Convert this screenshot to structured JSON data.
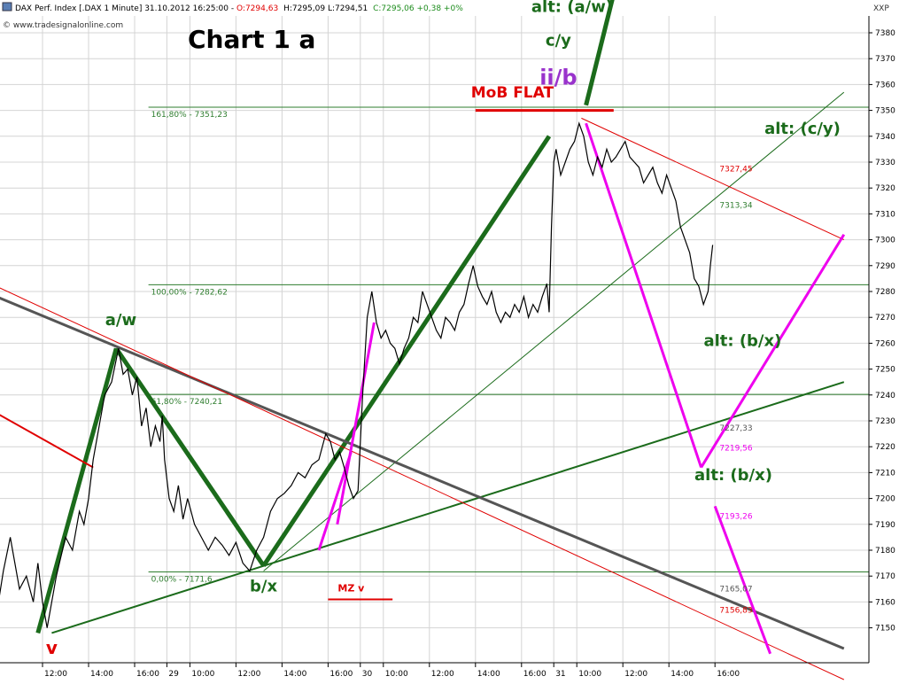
{
  "header": {
    "instrument": "DAX Perf. Index [.DAX  1 Minute] 31.10.2012 16:25:00 -",
    "open": "O:7294,63",
    "hl": "H:7295,09 L:7294,51",
    "close": "C:7295,06 +0,38 +0%",
    "source": "© www.tradesignalonline.com",
    "axis_unit": "XXP"
  },
  "colors": {
    "background": "#ffffff",
    "grid": "#d4d4d4",
    "price": "#000000",
    "wave_green": "#1b6b1b",
    "red": "#e00000",
    "magenta": "#ee00ee",
    "purple": "#9933cc",
    "gray_line": "#555555",
    "fib_green": "#2e7d2e"
  },
  "chart_data": {
    "type": "line",
    "title": "Chart 1 a",
    "ylim": [
      7137,
      7393
    ],
    "yticks": [
      7150,
      7160,
      7170,
      7180,
      7190,
      7200,
      7210,
      7220,
      7230,
      7240,
      7250,
      7260,
      7270,
      7280,
      7290,
      7300,
      7310,
      7320,
      7330,
      7340,
      7350,
      7360,
      7370,
      7380
    ],
    "xlim": [
      0,
      162
    ],
    "xticks": [
      {
        "label": "12:00",
        "t": 10
      },
      {
        "label": "14:00",
        "t": 20
      },
      {
        "label": "16:00",
        "t": 30
      },
      {
        "label": "29",
        "t": 37
      },
      {
        "label": "10:00",
        "t": 42
      },
      {
        "label": "12:00",
        "t": 52
      },
      {
        "label": "14:00",
        "t": 62
      },
      {
        "label": "16:00",
        "t": 72
      },
      {
        "label": "30",
        "t": 79
      },
      {
        "label": "10:00",
        "t": 84
      },
      {
        "label": "12:00",
        "t": 94
      },
      {
        "label": "14:00",
        "t": 104
      },
      {
        "label": "16:00",
        "t": 114
      },
      {
        "label": "31",
        "t": 121
      },
      {
        "label": "10:00",
        "t": 126
      },
      {
        "label": "12:00",
        "t": 136
      },
      {
        "label": "14:00",
        "t": 146
      },
      {
        "label": "16:00",
        "t": 156
      }
    ],
    "price_series": [
      [
        0,
        7155
      ],
      [
        1.5,
        7172
      ],
      [
        3,
        7185
      ],
      [
        4,
        7175
      ],
      [
        5,
        7165
      ],
      [
        6.5,
        7170
      ],
      [
        8,
        7160
      ],
      [
        9,
        7175
      ],
      [
        10,
        7160
      ],
      [
        11,
        7150
      ],
      [
        12,
        7160
      ],
      [
        13,
        7170
      ],
      [
        15,
        7185
      ],
      [
        16.5,
        7180
      ],
      [
        18,
        7195
      ],
      [
        19,
        7190
      ],
      [
        20,
        7200
      ],
      [
        21,
        7215
      ],
      [
        22,
        7225
      ],
      [
        23.5,
        7240
      ],
      [
        25,
        7245
      ],
      [
        26.5,
        7258
      ],
      [
        27.5,
        7248
      ],
      [
        28.5,
        7250
      ],
      [
        29.5,
        7240
      ],
      [
        30.5,
        7247
      ],
      [
        31.5,
        7228
      ],
      [
        32.5,
        7235
      ],
      [
        33.5,
        7220
      ],
      [
        34.5,
        7228
      ],
      [
        35.5,
        7222
      ],
      [
        36,
        7232
      ],
      [
        36.5,
        7215
      ],
      [
        37.5,
        7200
      ],
      [
        38.5,
        7195
      ],
      [
        39.5,
        7205
      ],
      [
        40.5,
        7192
      ],
      [
        41.5,
        7200
      ],
      [
        43,
        7190
      ],
      [
        44.5,
        7185
      ],
      [
        46,
        7180
      ],
      [
        47.5,
        7185
      ],
      [
        49,
        7182
      ],
      [
        50.5,
        7178
      ],
      [
        52,
        7183
      ],
      [
        53.5,
        7175
      ],
      [
        55,
        7172
      ],
      [
        56.5,
        7180
      ],
      [
        58,
        7185
      ],
      [
        59.5,
        7195
      ],
      [
        61,
        7200
      ],
      [
        62.5,
        7202
      ],
      [
        64,
        7205
      ],
      [
        65.5,
        7210
      ],
      [
        67,
        7208
      ],
      [
        68.5,
        7213
      ],
      [
        70,
        7215
      ],
      [
        71.5,
        7225
      ],
      [
        72.5,
        7222
      ],
      [
        73.5,
        7215
      ],
      [
        74.5,
        7218
      ],
      [
        75.5,
        7212
      ],
      [
        76.5,
        7205
      ],
      [
        77.5,
        7200
      ],
      [
        78.5,
        7203
      ],
      [
        79.5,
        7240
      ],
      [
        80,
        7255
      ],
      [
        80.5,
        7270
      ],
      [
        81.5,
        7280
      ],
      [
        82.5,
        7268
      ],
      [
        83.5,
        7262
      ],
      [
        84.5,
        7265
      ],
      [
        85.5,
        7260
      ],
      [
        86.5,
        7258
      ],
      [
        87.5,
        7252
      ],
      [
        88.5,
        7258
      ],
      [
        89.5,
        7262
      ],
      [
        90.5,
        7270
      ],
      [
        91.5,
        7268
      ],
      [
        92.5,
        7280
      ],
      [
        93.5,
        7275
      ],
      [
        94.5,
        7270
      ],
      [
        95.5,
        7265
      ],
      [
        96.5,
        7262
      ],
      [
        97.5,
        7270
      ],
      [
        98.5,
        7268
      ],
      [
        99.5,
        7265
      ],
      [
        100.5,
        7272
      ],
      [
        101.5,
        7275
      ],
      [
        102.5,
        7283
      ],
      [
        103.5,
        7290
      ],
      [
        104.5,
        7282
      ],
      [
        105.5,
        7278
      ],
      [
        106.5,
        7275
      ],
      [
        107.5,
        7280
      ],
      [
        108.5,
        7272
      ],
      [
        109.5,
        7268
      ],
      [
        110.5,
        7272
      ],
      [
        111.5,
        7270
      ],
      [
        112.5,
        7275
      ],
      [
        113.5,
        7272
      ],
      [
        114.5,
        7278
      ],
      [
        115.5,
        7270
      ],
      [
        116.5,
        7275
      ],
      [
        117.5,
        7272
      ],
      [
        118.5,
        7278
      ],
      [
        119.5,
        7283
      ],
      [
        120,
        7272
      ],
      [
        120.5,
        7305
      ],
      [
        121,
        7330
      ],
      [
        121.5,
        7335
      ],
      [
        122.5,
        7325
      ],
      [
        123.5,
        7330
      ],
      [
        124.5,
        7335
      ],
      [
        125.5,
        7338
      ],
      [
        126.5,
        7345
      ],
      [
        127.5,
        7340
      ],
      [
        128.5,
        7330
      ],
      [
        129.5,
        7325
      ],
      [
        130.5,
        7332
      ],
      [
        131.5,
        7328
      ],
      [
        132.5,
        7335
      ],
      [
        133.5,
        7330
      ],
      [
        134.5,
        7332
      ],
      [
        135.5,
        7335
      ],
      [
        136.5,
        7338
      ],
      [
        137.5,
        7332
      ],
      [
        138.5,
        7330
      ],
      [
        139.5,
        7328
      ],
      [
        140.5,
        7322
      ],
      [
        141.5,
        7325
      ],
      [
        142.5,
        7328
      ],
      [
        143.5,
        7322
      ],
      [
        144.5,
        7318
      ],
      [
        145.5,
        7325
      ],
      [
        146.5,
        7320
      ],
      [
        147.5,
        7315
      ],
      [
        148.5,
        7305
      ],
      [
        149.5,
        7300
      ],
      [
        150.5,
        7295
      ],
      [
        151.5,
        7285
      ],
      [
        152.5,
        7282
      ],
      [
        153.5,
        7275
      ],
      [
        154.5,
        7280
      ],
      [
        155,
        7290
      ],
      [
        155.5,
        7298
      ]
    ],
    "wave_lines": [
      {
        "name": "v-to-a/w",
        "color": "wave_green",
        "width": 5,
        "points": [
          [
            9,
            7148
          ],
          [
            26,
            7258
          ]
        ]
      },
      {
        "name": "a/w-to-b/x",
        "color": "wave_green",
        "width": 5,
        "points": [
          [
            26,
            7258
          ],
          [
            58,
            7174
          ]
        ]
      },
      {
        "name": "b/x-to-c",
        "color": "wave_green",
        "width": 5,
        "points": [
          [
            58,
            7174
          ],
          [
            120,
            7340
          ]
        ]
      },
      {
        "name": "ii/b-to-alt-a/w",
        "color": "wave_green",
        "width": 5,
        "points": [
          [
            128,
            7352
          ],
          [
            134,
            7395
          ]
        ]
      },
      {
        "name": "support-lower",
        "color": "wave_green",
        "width": 2,
        "points": [
          [
            12,
            7148
          ],
          [
            184,
            7245
          ]
        ]
      },
      {
        "name": "support-upper",
        "color": "wave_green",
        "width": 1,
        "points": [
          [
            58,
            7172
          ],
          [
            184,
            7357
          ]
        ]
      },
      {
        "name": "gray-trendline",
        "color": "gray_line",
        "width": 3,
        "points": [
          [
            0,
            7278
          ],
          [
            184,
            7142
          ]
        ]
      },
      {
        "name": "red-trendline-1",
        "color": "red",
        "width": 1,
        "points": [
          [
            0,
            7282
          ],
          [
            184,
            7130
          ]
        ]
      },
      {
        "name": "red-channel-top",
        "color": "red",
        "width": 1,
        "points": [
          [
            127,
            7347
          ],
          [
            184,
            7300
          ]
        ]
      },
      {
        "name": "red-short",
        "color": "red",
        "width": 2,
        "points": [
          [
            0,
            7233
          ],
          [
            21,
            7212
          ]
        ]
      },
      {
        "name": "mob-flat",
        "color": "red",
        "width": 3,
        "points": [
          [
            104,
            7350
          ],
          [
            134,
            7350
          ]
        ]
      },
      {
        "name": "mz-v",
        "color": "red",
        "width": 2,
        "points": [
          [
            72,
            7161
          ],
          [
            86,
            7161
          ]
        ]
      },
      {
        "name": "magenta-up-1",
        "color": "magenta",
        "width": 3,
        "points": [
          [
            74,
            7190
          ],
          [
            82,
            7268
          ]
        ]
      },
      {
        "name": "magenta-up-2",
        "color": "magenta",
        "width": 3,
        "points": [
          [
            70,
            7180
          ],
          [
            77,
            7218
          ]
        ]
      },
      {
        "name": "magenta-down-1",
        "color": "magenta",
        "width": 3,
        "points": [
          [
            128,
            7345
          ],
          [
            153,
            7212
          ]
        ]
      },
      {
        "name": "magenta-up-3",
        "color": "magenta",
        "width": 3,
        "points": [
          [
            153,
            7212
          ],
          [
            184,
            7302
          ]
        ]
      },
      {
        "name": "magenta-down-2",
        "color": "magenta",
        "width": 3,
        "points": [
          [
            156,
            7197
          ],
          [
            168,
            7140
          ]
        ]
      }
    ],
    "fib_levels": [
      {
        "label": "161,80% - 7351,23",
        "value": 7351.23
      },
      {
        "label": "100,00% - 7282,62",
        "value": 7282.62
      },
      {
        "label": "61,80% - 7240,21",
        "value": 7240.21
      },
      {
        "label": "0,00% - 7171,6",
        "value": 7171.6
      }
    ],
    "level_labels": [
      {
        "text": "7327,45",
        "t": 157,
        "value": 7327.45,
        "color": "red"
      },
      {
        "text": "7313,34",
        "t": 157,
        "value": 7313.34,
        "color": "fib_green"
      },
      {
        "text": "7227,33",
        "t": 157,
        "value": 7227.33,
        "color": "gray_line"
      },
      {
        "text": "7219,56",
        "t": 157,
        "value": 7219.56,
        "color": "magenta"
      },
      {
        "text": "7193,26",
        "t": 157,
        "value": 7193.26,
        "color": "magenta"
      },
      {
        "text": "7165,07",
        "t": 157,
        "value": 7165.07,
        "color": "gray_line"
      },
      {
        "text": "7156,83",
        "t": 157,
        "value": 7156.83,
        "color": "red"
      }
    ],
    "annotations": [
      {
        "text": "a/w",
        "t": 27,
        "value": 7267,
        "color": "wave_green",
        "size": 18
      },
      {
        "text": "b/x",
        "t": 58,
        "value": 7164,
        "color": "wave_green",
        "size": 18
      },
      {
        "text": "v",
        "t": 12,
        "value": 7140,
        "color": "red",
        "size": 20
      },
      {
        "text": "ii/b",
        "t": 122,
        "value": 7360,
        "color": "purple",
        "size": 24
      },
      {
        "text": "c/y",
        "t": 122,
        "value": 7375,
        "color": "wave_green",
        "size": 18
      },
      {
        "text": "alt: (a/w)",
        "t": 125,
        "value": 7388,
        "color": "wave_green",
        "size": 18
      },
      {
        "text": "MoB FLAT",
        "t": 112,
        "value": 7355,
        "color": "red",
        "size": 17
      },
      {
        "text": "alt: (c/y)",
        "t": 175,
        "value": 7341,
        "color": "wave_green",
        "size": 18
      },
      {
        "text": "alt: (b/x)",
        "t": 162,
        "value": 7259,
        "color": "wave_green",
        "size": 18
      },
      {
        "text": "alt: (b/x)",
        "t": 160,
        "value": 7207,
        "color": "wave_green",
        "size": 18
      },
      {
        "text": "MZ v",
        "t": 77,
        "value": 7164,
        "color": "red",
        "size": 11
      }
    ]
  }
}
